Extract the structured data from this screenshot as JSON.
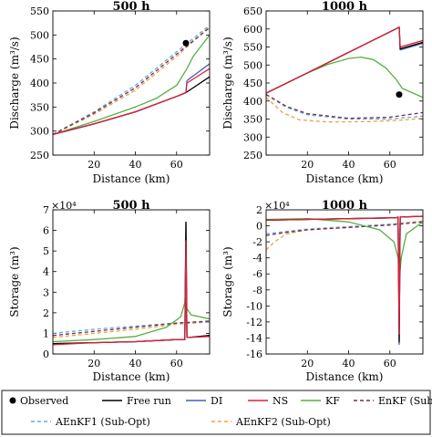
{
  "x_ticks": [
    "20",
    "40",
    "60"
  ],
  "legend": [
    {
      "name": "Observed",
      "marker": true,
      "color": "#000000",
      "dash": false
    },
    {
      "name": "Free run",
      "color": "#000000",
      "dash": false
    },
    {
      "name": "DI",
      "color": "#4060b0",
      "dash": false
    },
    {
      "name": "NS",
      "color": "#e0203a",
      "dash": false
    },
    {
      "name": "KF",
      "color": "#55b040",
      "dash": false
    },
    {
      "name": "EnKF (Sub-Opt)",
      "color": "#7a2a50",
      "dash": true
    },
    {
      "name": "AEnKF1 (Sub-Opt)",
      "color": "#5bb0e0",
      "dash": true
    },
    {
      "name": "AEnKF2 (Sub-Opt)",
      "color": "#f0a040",
      "dash": true
    }
  ],
  "chart_data": [
    {
      "type": "line",
      "title": "500 h",
      "xlabel": "Distance (km)",
      "ylabel": "Discharge (m³/s)",
      "xlim": [
        0,
        76
      ],
      "ylim": [
        250,
        550
      ],
      "y_ticks": [
        "250",
        "300",
        "350",
        "400",
        "450",
        "500",
        "550"
      ],
      "observed": [
        64.5,
        483
      ],
      "series": [
        {
          "name": "Free run",
          "x": [
            0,
            20,
            40,
            60,
            64.5,
            76
          ],
          "y": [
            293,
            315,
            340,
            372,
            380,
            413
          ]
        },
        {
          "name": "DI",
          "x": [
            0,
            20,
            40,
            60,
            64.5,
            65,
            76
          ],
          "y": [
            293,
            315,
            340,
            372,
            380,
            405,
            440
          ]
        },
        {
          "name": "NS",
          "x": [
            0,
            20,
            40,
            60,
            64.5,
            65,
            76
          ],
          "y": [
            293,
            315,
            340,
            372,
            380,
            400,
            430
          ]
        },
        {
          "name": "KF",
          "x": [
            0,
            20,
            40,
            50,
            60,
            65,
            68,
            76
          ],
          "y": [
            293,
            320,
            350,
            368,
            395,
            430,
            455,
            500
          ]
        },
        {
          "name": "EnKF (Sub-Opt)",
          "x": [
            0,
            20,
            40,
            60,
            76
          ],
          "y": [
            293,
            338,
            390,
            460,
            515
          ]
        },
        {
          "name": "AEnKF1 (Sub-Opt)",
          "x": [
            0,
            20,
            40,
            60,
            76
          ],
          "y": [
            293,
            340,
            395,
            465,
            520
          ]
        },
        {
          "name": "AEnKF2 (Sub-Opt)",
          "x": [
            0,
            20,
            40,
            60,
            76
          ],
          "y": [
            293,
            335,
            385,
            455,
            518
          ]
        }
      ]
    },
    {
      "type": "line",
      "title": "1000 h",
      "xlabel": "Distance (km)",
      "ylabel": "Discharge (m³/s)",
      "xlim": [
        0,
        76
      ],
      "ylim": [
        250,
        650
      ],
      "y_ticks": [
        "250",
        "300",
        "350",
        "400",
        "450",
        "500",
        "550",
        "600",
        "650"
      ],
      "observed": [
        64.5,
        418
      ],
      "series": [
        {
          "name": "Free run",
          "x": [
            0,
            20,
            40,
            60,
            64.5,
            65,
            76
          ],
          "y": [
            422,
            478,
            535,
            592,
            605,
            545,
            563
          ]
        },
        {
          "name": "DI",
          "x": [
            0,
            20,
            40,
            60,
            64.5,
            65,
            76
          ],
          "y": [
            422,
            478,
            535,
            592,
            605,
            542,
            560
          ]
        },
        {
          "name": "NS",
          "x": [
            0,
            20,
            40,
            60,
            64.5,
            65,
            76
          ],
          "y": [
            422,
            478,
            535,
            592,
            605,
            550,
            568
          ]
        },
        {
          "name": "KF",
          "x": [
            0,
            10,
            20,
            30,
            40,
            46,
            52,
            58,
            63,
            66,
            76
          ],
          "y": [
            422,
            450,
            478,
            502,
            518,
            522,
            515,
            492,
            460,
            435,
            410
          ]
        },
        {
          "name": "EnKF (Sub-Opt)",
          "x": [
            0,
            10,
            20,
            40,
            60,
            76
          ],
          "y": [
            418,
            385,
            365,
            352,
            355,
            368
          ]
        },
        {
          "name": "AEnKF1 (Sub-Opt)",
          "x": [
            0,
            10,
            20,
            40,
            60,
            76
          ],
          "y": [
            418,
            382,
            362,
            350,
            350,
            358
          ]
        },
        {
          "name": "AEnKF2 (Sub-Opt)",
          "x": [
            0,
            8,
            16,
            30,
            50,
            65,
            76
          ],
          "y": [
            410,
            368,
            348,
            342,
            343,
            347,
            352
          ]
        }
      ]
    },
    {
      "type": "line",
      "title": "500 h",
      "xlabel": "Distance (km)",
      "ylabel": "Storage (m³)",
      "exponent": "×10⁴",
      "xlim": [
        0,
        76
      ],
      "ylim": [
        0,
        7
      ],
      "y_ticks": [
        "0",
        "1",
        "2",
        "3",
        "4",
        "5",
        "6",
        "7"
      ],
      "series": [
        {
          "name": "Free run",
          "x": [
            0,
            20,
            40,
            60,
            64,
            64.5,
            65,
            66,
            76
          ],
          "y": [
            0.5,
            0.55,
            0.6,
            0.7,
            0.7,
            6.4,
            0.8,
            0.8,
            0.9
          ]
        },
        {
          "name": "DI",
          "x": [
            0,
            20,
            40,
            60,
            64,
            64.5,
            65,
            66,
            76
          ],
          "y": [
            0.5,
            0.55,
            0.6,
            0.7,
            0.7,
            6.4,
            0.8,
            0.8,
            0.9
          ]
        },
        {
          "name": "NS",
          "x": [
            0,
            20,
            40,
            60,
            64,
            64.5,
            65,
            66,
            76
          ],
          "y": [
            0.45,
            0.55,
            0.6,
            0.7,
            0.7,
            5.5,
            0.8,
            0.8,
            0.85
          ]
        },
        {
          "name": "KF",
          "x": [
            0,
            20,
            40,
            55,
            62,
            64,
            64.5,
            65,
            67,
            76
          ],
          "y": [
            0.6,
            0.7,
            0.85,
            1.3,
            1.8,
            2.5,
            3.5,
            2.2,
            1.9,
            1.7
          ]
        },
        {
          "name": "EnKF (Sub-Opt)",
          "x": [
            0,
            20,
            40,
            60,
            76
          ],
          "y": [
            0.9,
            1.1,
            1.3,
            1.5,
            1.6
          ]
        },
        {
          "name": "AEnKF1 (Sub-Opt)",
          "x": [
            0,
            20,
            40,
            60,
            76
          ],
          "y": [
            1.0,
            1.2,
            1.35,
            1.5,
            1.55
          ]
        },
        {
          "name": "AEnKF2 (Sub-Opt)",
          "x": [
            0,
            20,
            40,
            60,
            76
          ],
          "y": [
            0.8,
            1.0,
            1.2,
            1.45,
            1.55
          ]
        }
      ]
    },
    {
      "type": "line",
      "title": "1000 h",
      "xlabel": "Distance (km)",
      "ylabel": "Storage (m³)",
      "exponent": "×10⁴",
      "xlim": [
        0,
        76
      ],
      "ylim": [
        -16,
        2
      ],
      "y_ticks": [
        "-16",
        "-14",
        "-12",
        "-10",
        "-8",
        "-6",
        "-4",
        "-2",
        "0",
        "2"
      ],
      "series": [
        {
          "name": "Free run",
          "x": [
            0,
            20,
            40,
            60,
            63,
            64,
            64.5,
            65,
            66,
            76
          ],
          "y": [
            0.7,
            0.8,
            0.9,
            1.0,
            1.0,
            1.1,
            -14.5,
            1.1,
            1.1,
            1.2
          ]
        },
        {
          "name": "DI",
          "x": [
            0,
            20,
            40,
            60,
            63,
            64,
            64.5,
            65,
            66,
            76
          ],
          "y": [
            0.7,
            0.8,
            0.9,
            1.0,
            1.0,
            1.1,
            -14.8,
            1.1,
            1.1,
            1.2
          ]
        },
        {
          "name": "NS",
          "x": [
            0,
            20,
            40,
            60,
            63,
            64,
            64.5,
            65,
            66,
            76
          ],
          "y": [
            0.7,
            0.8,
            0.9,
            1.0,
            1.0,
            1.1,
            -13.5,
            1.1,
            1.1,
            1.2
          ]
        },
        {
          "name": "KF",
          "x": [
            0,
            20,
            40,
            55,
            62,
            64,
            64.5,
            65.5,
            68,
            76
          ],
          "y": [
            0.8,
            0.9,
            0.5,
            -0.5,
            -2.0,
            -4.0,
            -7.0,
            -4.0,
            -1.0,
            0.5
          ]
        },
        {
          "name": "EnKF (Sub-Opt)",
          "x": [
            0,
            10,
            20,
            40,
            60,
            76
          ],
          "y": [
            -1.2,
            -0.8,
            -0.5,
            -0.2,
            0.1,
            0.5
          ]
        },
        {
          "name": "AEnKF1 (Sub-Opt)",
          "x": [
            0,
            10,
            20,
            40,
            60,
            76
          ],
          "y": [
            -1.0,
            -0.7,
            -0.4,
            -0.1,
            0.2,
            0.5
          ]
        },
        {
          "name": "AEnKF2 (Sub-Opt)",
          "x": [
            0,
            4,
            10,
            20,
            40,
            60,
            76
          ],
          "y": [
            -3.0,
            -2.0,
            -1.0,
            -0.5,
            -0.2,
            0.2,
            0.6
          ]
        }
      ]
    }
  ]
}
